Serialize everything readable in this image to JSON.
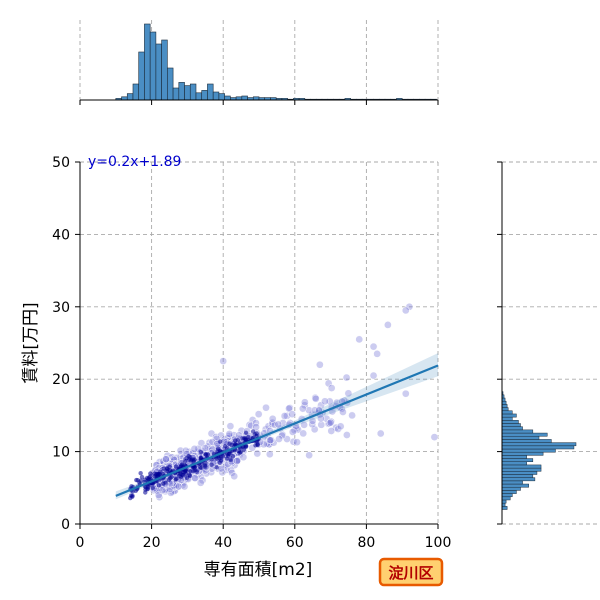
{
  "chart_data": {
    "type": "scatter",
    "title": "",
    "xlabel": "専有面積[m2]",
    "ylabel": "賃料[万円]",
    "xlim": [
      0,
      100
    ],
    "ylim": [
      0,
      50
    ],
    "xticks": [
      "0",
      "20",
      "40",
      "60",
      "80",
      "100"
    ],
    "yticks": [
      "0",
      "10",
      "20",
      "30",
      "40",
      "50"
    ],
    "grid": true,
    "annotation": "y=0.2x+1.89",
    "badge": "淀川区",
    "regression": {
      "slope": 0.2,
      "intercept": 1.89,
      "x_range": [
        10,
        100
      ]
    },
    "confidence_band": [
      {
        "x": 10,
        "lo": 3.4,
        "hi": 4.5
      },
      {
        "x": 30,
        "lo": 7.7,
        "hi": 8.1
      },
      {
        "x": 60,
        "lo": 13.5,
        "hi": 14.3
      },
      {
        "x": 100,
        "lo": 20.4,
        "hi": 23.6
      }
    ],
    "scatter_notable_points": [
      {
        "x": 92,
        "y": 30.0
      },
      {
        "x": 91,
        "y": 29.5
      },
      {
        "x": 86,
        "y": 27.5
      },
      {
        "x": 78,
        "y": 25.5
      },
      {
        "x": 82,
        "y": 24.5
      },
      {
        "x": 83,
        "y": 23.5
      },
      {
        "x": 40,
        "y": 22.5
      },
      {
        "x": 67,
        "y": 22.0
      },
      {
        "x": 82,
        "y": 20.5
      },
      {
        "x": 91,
        "y": 18.0
      },
      {
        "x": 99,
        "y": 12.0
      },
      {
        "x": 84,
        "y": 12.5
      },
      {
        "x": 76,
        "y": 15.0
      },
      {
        "x": 70,
        "y": 14.0
      },
      {
        "x": 64,
        "y": 9.5
      }
    ],
    "marginal_x_histogram": {
      "bin_start": 10,
      "bin_width": 1.6,
      "counts": [
        2,
        4,
        8,
        20,
        60,
        95,
        85,
        70,
        75,
        40,
        15,
        22,
        18,
        20,
        9,
        12,
        20,
        10,
        8,
        5,
        3,
        4,
        5,
        3,
        4,
        3,
        3,
        3,
        2,
        2,
        1,
        2,
        2,
        1,
        1,
        1,
        1,
        1,
        1,
        1,
        2,
        1,
        1,
        1,
        1,
        1,
        1,
        1,
        1,
        2,
        1,
        1,
        1,
        1,
        1,
        1
      ]
    },
    "marginal_y_histogram": {
      "bin_start": 2,
      "bin_width": 0.44,
      "counts": [
        5,
        3,
        4,
        8,
        10,
        14,
        18,
        26,
        20,
        32,
        30,
        34,
        38,
        38,
        24,
        30,
        24,
        40,
        52,
        70,
        72,
        48,
        36,
        44,
        30,
        20,
        18,
        16,
        10,
        14,
        10,
        6,
        5,
        4,
        3,
        2,
        1
      ]
    }
  }
}
